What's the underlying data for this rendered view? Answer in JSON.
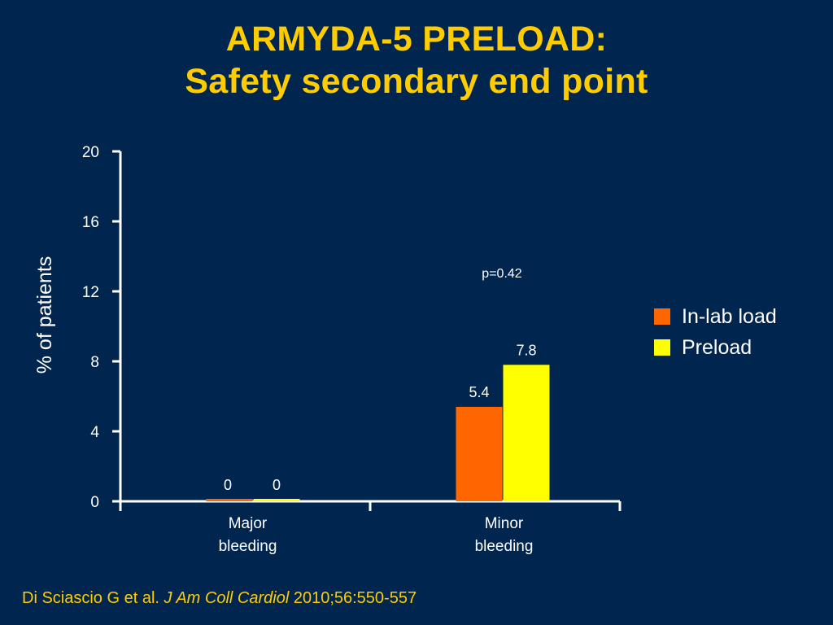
{
  "slide": {
    "title_line1": "ARMYDA-5 PRELOAD:",
    "title_line2": "Safety secondary end point"
  },
  "chart_data": {
    "type": "bar",
    "ylabel": "% of patients",
    "ylim": [
      0,
      20
    ],
    "yticks": [
      "0",
      "4",
      "8",
      "12",
      "16",
      "20"
    ],
    "categories": [
      [
        "Major",
        "bleeding"
      ],
      [
        "Minor",
        "bleeding"
      ]
    ],
    "series": [
      {
        "name": "In-lab load",
        "values": [
          0,
          5.4
        ],
        "labels": [
          "0",
          "5.4"
        ],
        "color": "#ff6600"
      },
      {
        "name": "Preload",
        "values": [
          0,
          7.8
        ],
        "labels": [
          "0",
          "7.8"
        ],
        "color": "#ffff00"
      }
    ],
    "annotation": "p=0.42",
    "legend_placement": "right",
    "grid": false
  },
  "citation": {
    "authors": "Di Sciascio G et al.",
    "journal": "J Am Coll Cardiol",
    "ref": "2010;56:550-557"
  },
  "colors": {
    "background": "#00264f",
    "title": "#ffcc00",
    "text": "#ffffff"
  }
}
